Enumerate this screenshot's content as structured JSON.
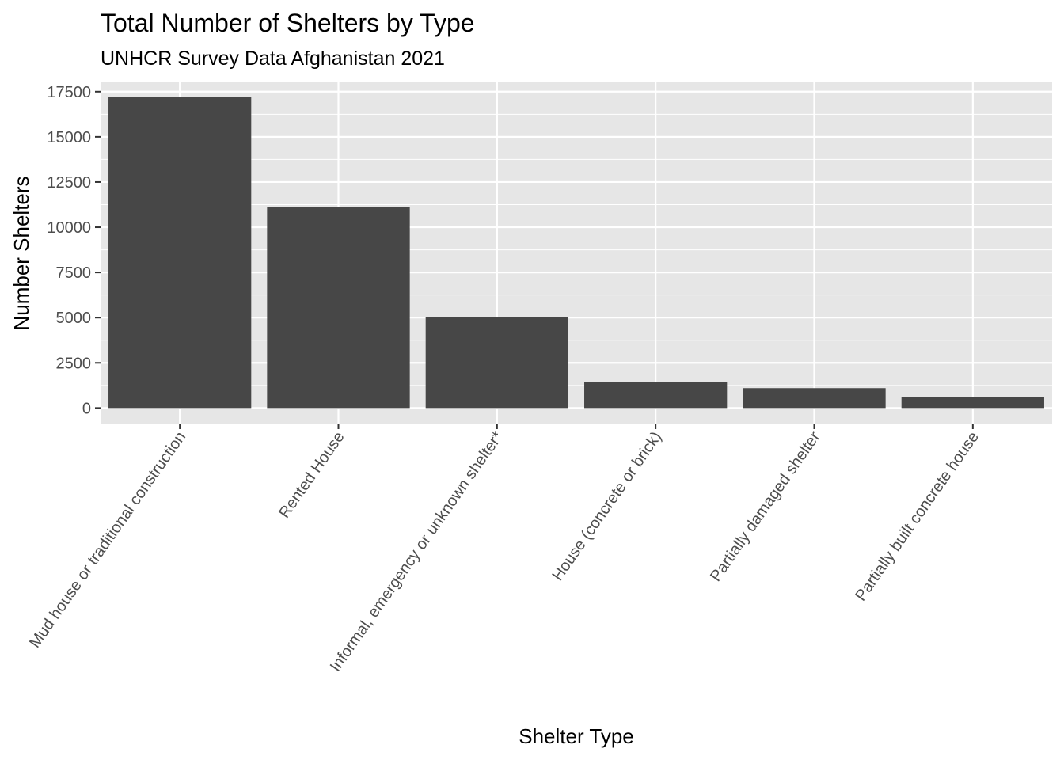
{
  "chart_data": {
    "type": "bar",
    "title": "Total Number of Shelters by Type",
    "subtitle": "UNHCR Survey Data Afghanistan 2021",
    "xlabel": "Shelter Type",
    "ylabel": "Number Shelters",
    "categories": [
      "Mud house or traditional construction",
      "Rented House",
      "Informal, emergency or unknown shelter*",
      "House (concrete or brick)",
      "Partially damaged shelter",
      "Partially built concrete house"
    ],
    "values": [
      17200,
      11100,
      5050,
      1450,
      1100,
      620
    ],
    "yticks": [
      0,
      2500,
      5000,
      7500,
      10000,
      12500,
      15000,
      17500
    ],
    "ytick_labels": [
      "0",
      "2500",
      "5000",
      "7500",
      "10000",
      "12500",
      "15000",
      "17500"
    ],
    "ylim": [
      -860,
      18060
    ],
    "grid": true,
    "colors": {
      "bar": "#474747",
      "panel": "#e6e6e6",
      "grid": "#ffffff",
      "tick": "#333333"
    }
  }
}
